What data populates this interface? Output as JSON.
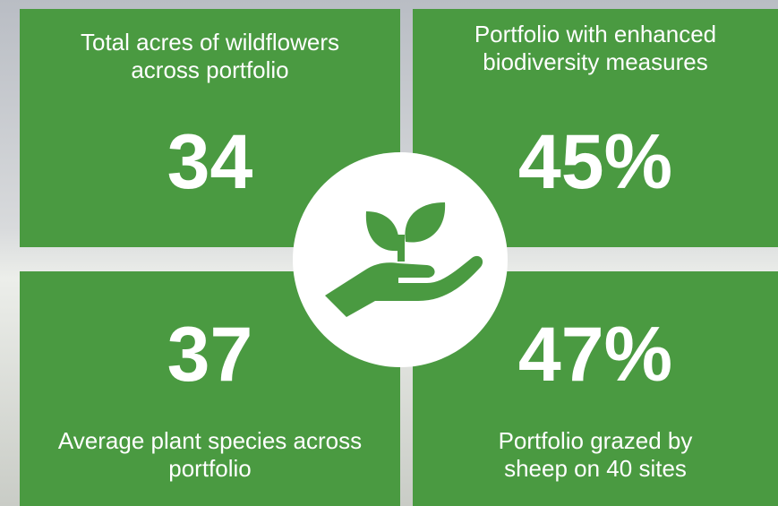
{
  "tiles": [
    {
      "label_lines": [
        "Total acres of wildflowers",
        "across portfolio"
      ],
      "value": "34"
    },
    {
      "label_lines": [
        "Portfolio with enhanced",
        "biodiversity measures"
      ],
      "value": "45%"
    },
    {
      "label_lines": [
        "Average plant species across",
        "portfolio"
      ],
      "value": "37"
    },
    {
      "label_lines": [
        "Portfolio grazed by",
        "sheep on 40 sites"
      ],
      "value": "47%"
    }
  ]
}
